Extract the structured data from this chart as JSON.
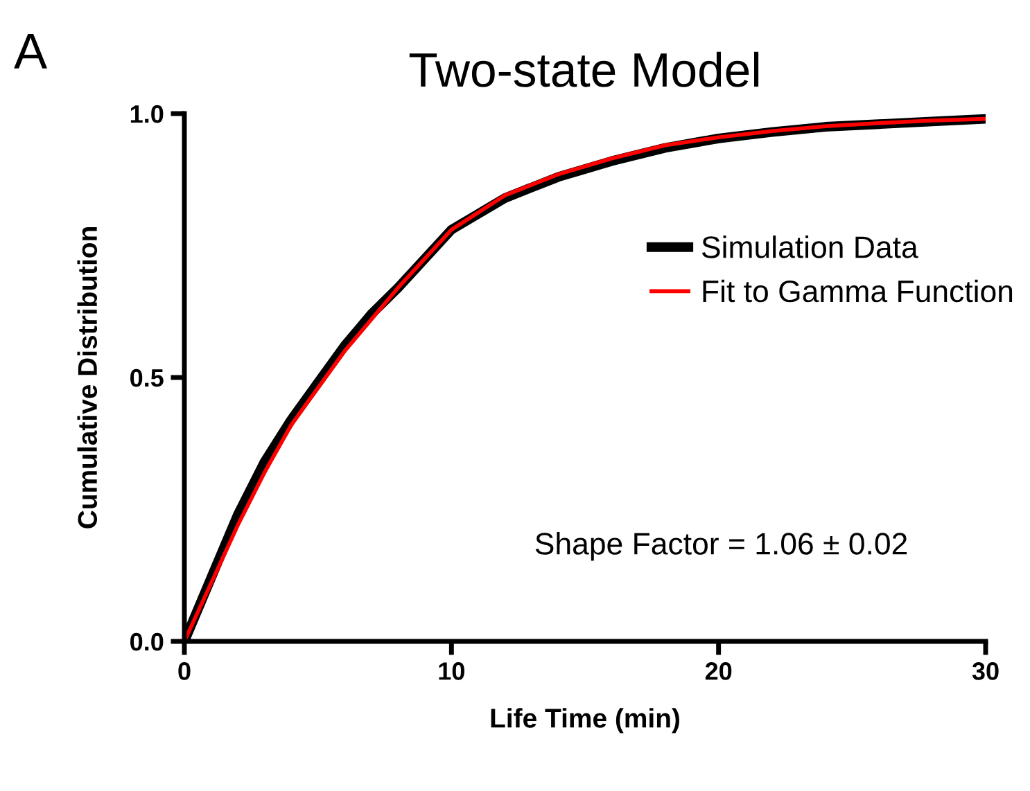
{
  "chart_data": {
    "type": "line",
    "title": "Two-state Model",
    "xlabel": "Life Time (min)",
    "ylabel": "Cumulative Distribution",
    "annotations": [
      "A",
      "Shape Factor = 1.06 ± 0.02"
    ],
    "x": [
      0,
      1,
      2,
      3,
      4,
      5,
      6,
      7,
      8,
      10,
      12,
      14,
      16,
      18,
      20,
      22,
      24,
      26,
      28,
      30
    ],
    "series": [
      {
        "name": "Simulation Data",
        "color": "#000000",
        "values": [
          0,
          0.12,
          0.24,
          0.34,
          0.42,
          0.49,
          0.56,
          0.62,
          0.67,
          0.78,
          0.84,
          0.88,
          0.91,
          0.935,
          0.953,
          0.965,
          0.975,
          0.98,
          0.985,
          0.99
        ]
      },
      {
        "name": "Fit to Gamma Function",
        "color": "#ff0000",
        "values": [
          0,
          0.11,
          0.22,
          0.32,
          0.41,
          0.48,
          0.55,
          0.61,
          0.67,
          0.78,
          0.845,
          0.885,
          0.915,
          0.94,
          0.955,
          0.967,
          0.976,
          0.982,
          0.987,
          0.99
        ]
      }
    ],
    "xlim": [
      0,
      30
    ],
    "xticks": [
      0,
      10,
      20,
      30
    ],
    "ylim": [
      0,
      1
    ],
    "yticks": [
      {
        "value": 0,
        "label": "0.0"
      },
      {
        "value": 0.5,
        "label": "0.5"
      },
      {
        "value": 1,
        "label": "1.0"
      }
    ],
    "grid": false,
    "legend": "right",
    "marker": "none",
    "line_style": "solid"
  }
}
